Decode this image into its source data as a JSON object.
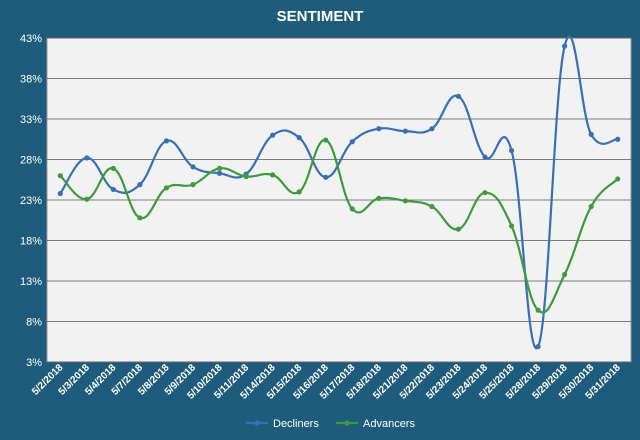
{
  "chart_data": {
    "type": "line",
    "title": "SENTIMENT",
    "xlabel": "",
    "ylabel": "",
    "categories": [
      "5/2/2018",
      "5/3/2018",
      "5/4/2018",
      "5/7/2018",
      "5/8/2018",
      "5/9/2018",
      "5/10/2018",
      "5/11/2018",
      "5/14/2018",
      "5/15/2018",
      "5/16/2018",
      "5/17/2018",
      "5/18/2018",
      "5/21/2018",
      "5/22/2018",
      "5/23/2018",
      "5/24/2018",
      "5/25/2018",
      "5/28/2018",
      "5/29/2018",
      "5/30/2018",
      "5/31/2018"
    ],
    "y_ticks": [
      "3%",
      "8%",
      "13%",
      "18%",
      "23%",
      "28%",
      "33%",
      "38%",
      "43%"
    ],
    "ylim": [
      3,
      43
    ],
    "grid": true,
    "legend_position": "bottom",
    "series": [
      {
        "name": "Decliners",
        "color": "#3a6fb5",
        "values": [
          23.8,
          28.2,
          24.3,
          24.9,
          30.3,
          27.1,
          26.3,
          26.2,
          31.0,
          30.7,
          25.8,
          30.2,
          31.8,
          31.5,
          31.8,
          35.8,
          28.3,
          29.1,
          4.9,
          42.0,
          31.1,
          30.5
        ]
      },
      {
        "name": "Advancers",
        "color": "#3f9a3f",
        "values": [
          26.0,
          23.1,
          26.9,
          20.8,
          24.5,
          24.9,
          26.9,
          25.9,
          26.1,
          24.0,
          30.4,
          21.9,
          23.2,
          22.9,
          22.2,
          19.4,
          23.9,
          19.8,
          9.4,
          13.8,
          22.2,
          25.6
        ]
      }
    ]
  }
}
